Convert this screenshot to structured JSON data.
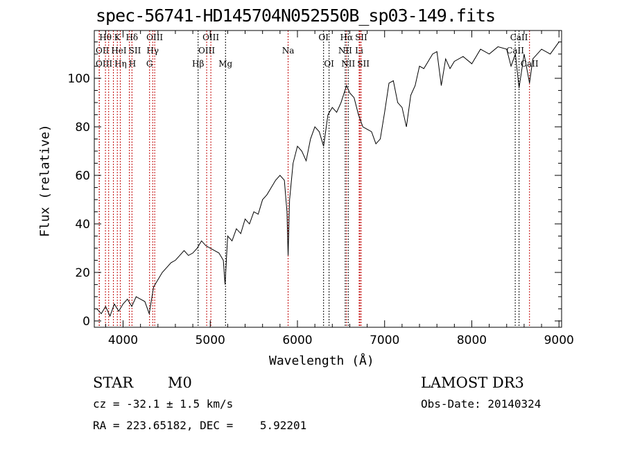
{
  "chart_data": {
    "type": "line",
    "title": "spec-56741-HD145704N052550B_sp03-149.fits",
    "xlabel": "Wavelength (Å)",
    "ylabel": "Flux (relative)",
    "xlim": [
      3670,
      9030
    ],
    "ylim": [
      -2.6,
      119.7
    ],
    "xticks": [
      4000,
      5000,
      6000,
      7000,
      8000,
      9000
    ],
    "yticks": [
      0,
      20,
      40,
      60,
      80,
      100
    ],
    "grid": false,
    "series": [
      {
        "name": "spectrum",
        "x": [
          3700,
          3750,
          3800,
          3850,
          3900,
          3950,
          4000,
          4050,
          4100,
          4150,
          4200,
          4250,
          4300,
          4350,
          4400,
          4450,
          4500,
          4550,
          4600,
          4650,
          4700,
          4750,
          4800,
          4850,
          4900,
          4950,
          5000,
          5050,
          5100,
          5150,
          5170,
          5200,
          5250,
          5300,
          5350,
          5400,
          5450,
          5500,
          5550,
          5600,
          5650,
          5700,
          5750,
          5800,
          5850,
          5880,
          5893,
          5910,
          5950,
          6000,
          6050,
          6100,
          6150,
          6200,
          6250,
          6300,
          6350,
          6400,
          6450,
          6500,
          6563,
          6600,
          6650,
          6700,
          6750,
          6800,
          6850,
          6900,
          6950,
          7000,
          7050,
          7100,
          7150,
          7200,
          7250,
          7300,
          7350,
          7400,
          7450,
          7500,
          7550,
          7600,
          7650,
          7700,
          7750,
          7800,
          7900,
          8000,
          8100,
          8200,
          8300,
          8400,
          8450,
          8500,
          8542,
          8600,
          8662,
          8700,
          8800,
          8900,
          9000
        ],
        "y": [
          5,
          3,
          6,
          2,
          7,
          4,
          7,
          9,
          6,
          10,
          9,
          8,
          3,
          14,
          17,
          20,
          22,
          24,
          25,
          27,
          29,
          27,
          28,
          30,
          33,
          31,
          30,
          29,
          28,
          25,
          15,
          35,
          33,
          38,
          36,
          42,
          40,
          45,
          44,
          50,
          52,
          55,
          58,
          60,
          58,
          45,
          27,
          50,
          65,
          72,
          70,
          66,
          75,
          80,
          78,
          72,
          85,
          88,
          86,
          90,
          97,
          94,
          92,
          85,
          80,
          79,
          78,
          73,
          75,
          86,
          98,
          99,
          90,
          88,
          80,
          93,
          97,
          105,
          104,
          107,
          110,
          111,
          97,
          108,
          104,
          107,
          109,
          106,
          112,
          110,
          113,
          112,
          105,
          110,
          96,
          110,
          98,
          108,
          112,
          110,
          115
        ]
      }
    ],
    "lines": [
      {
        "label": "Hθ",
        "w": 3798,
        "row": 1,
        "color": "#c00000"
      },
      {
        "label": "K",
        "w": 3934,
        "row": 1,
        "color": "#c00000"
      },
      {
        "label": "Hδ",
        "w": 4102,
        "row": 1,
        "color": "#c00000"
      },
      {
        "label": "OIII",
        "w": 4363,
        "row": 1,
        "color": "#c00000"
      },
      {
        "label": "OIII",
        "w": 5007,
        "row": 1,
        "color": "#c00000"
      },
      {
        "label": "OI",
        "w": 6300,
        "row": 1,
        "color": "#000000"
      },
      {
        "label": "Hα",
        "w": 6563,
        "row": 1,
        "color": "#c00000"
      },
      {
        "label": "SII",
        "w": 6717,
        "row": 1,
        "color": "#c00000"
      },
      {
        "label": "CaII",
        "w": 8542,
        "row": 1,
        "color": "#000000"
      },
      {
        "label": "OII",
        "w": 3727,
        "row": 2,
        "color": "#c00000"
      },
      {
        "label": "HeI",
        "w": 3889,
        "row": 2,
        "color": "#c00000"
      },
      {
        "label": "SII",
        "w": 4072,
        "row": 2,
        "color": "#c00000"
      },
      {
        "label": "Hγ",
        "w": 4340,
        "row": 2,
        "color": "#c00000"
      },
      {
        "label": "OIII",
        "w": 4959,
        "row": 2,
        "color": "#c00000"
      },
      {
        "label": "Na",
        "w": 5893,
        "row": 2,
        "color": "#c00000"
      },
      {
        "label": "NII",
        "w": 6548,
        "row": 2,
        "color": "#000000"
      },
      {
        "label": "Li",
        "w": 6708,
        "row": 2,
        "color": "#c00000"
      },
      {
        "label": "CaII",
        "w": 8498,
        "row": 2,
        "color": "#000000"
      },
      {
        "label": "OIII",
        "w": 3727,
        "row": 3,
        "color": "#c00000"
      },
      {
        "label": "Hη",
        "w": 3835,
        "row": 3,
        "color": "#c00000"
      },
      {
        "label": "H",
        "w": 3968,
        "row": 3,
        "color": "#c00000"
      },
      {
        "label": "G",
        "w": 4304,
        "row": 3,
        "color": "#c00000"
      },
      {
        "label": "Hβ",
        "w": 4861,
        "row": 3,
        "color": "#000000"
      },
      {
        "label": "Mg",
        "w": 5175,
        "row": 3,
        "color": "#000000"
      },
      {
        "label": "OI",
        "w": 6363,
        "row": 3,
        "color": "#000000"
      },
      {
        "label": "NII",
        "w": 6583,
        "row": 3,
        "color": "#000000"
      },
      {
        "label": "SII",
        "w": 6731,
        "row": 3,
        "color": "#c00000"
      },
      {
        "label": "CaII",
        "w": 8662,
        "row": 3,
        "color": "#c00000"
      }
    ]
  },
  "info": {
    "class": "STAR",
    "subclass": "M0",
    "survey": "LAMOST DR3",
    "cz": "cz = -32.1 ± 1.5 km/s",
    "obs_date": "Obs-Date: 20140324",
    "radec": "RA = 223.65182, DEC =    5.92201"
  }
}
